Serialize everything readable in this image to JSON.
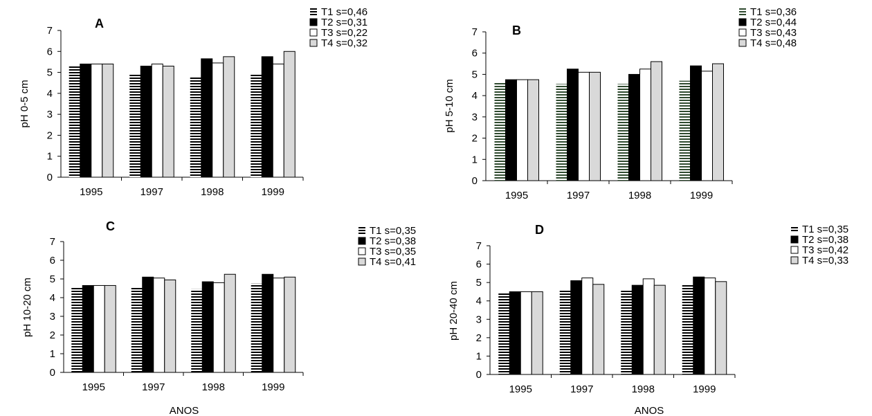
{
  "chart_data": [
    {
      "type": "bar",
      "panel_label": "A",
      "ylabel": "pH 0-5 cm",
      "xlabel": "",
      "categories": [
        "1995",
        "1997",
        "1998",
        "1999"
      ],
      "ylim": [
        0,
        7
      ],
      "yticks": [
        "0",
        "1",
        "2",
        "3",
        "4",
        "5",
        "6",
        "7"
      ],
      "series": [
        {
          "name": "T1 s=0,46",
          "values": [
            5.3,
            4.95,
            4.8,
            4.95
          ]
        },
        {
          "name": "T2 s=0,31",
          "values": [
            5.4,
            5.3,
            5.65,
            5.75
          ]
        },
        {
          "name": "T3 s=0,22",
          "values": [
            5.4,
            5.4,
            5.45,
            5.4
          ]
        },
        {
          "name": "T4 s=0,32",
          "values": [
            5.4,
            5.3,
            5.75,
            6.0
          ]
        }
      ]
    },
    {
      "type": "bar",
      "panel_label": "B",
      "ylabel": "pH 5-10 cm",
      "xlabel": "",
      "categories": [
        "1995",
        "1997",
        "1998",
        "1999"
      ],
      "ylim": [
        0,
        7
      ],
      "yticks": [
        "0",
        "1",
        "2",
        "3",
        "4",
        "5",
        "6",
        "7"
      ],
      "series": [
        {
          "name": "T1 s=0,36",
          "values": [
            4.65,
            4.55,
            4.55,
            4.7
          ]
        },
        {
          "name": "T2 s=0,44",
          "values": [
            4.75,
            5.25,
            5.0,
            5.4
          ]
        },
        {
          "name": "T3 s=0,43",
          "values": [
            4.75,
            5.1,
            5.25,
            5.15
          ]
        },
        {
          "name": "T4 s=0,48",
          "values": [
            4.75,
            5.1,
            5.6,
            5.5
          ]
        }
      ]
    },
    {
      "type": "bar",
      "panel_label": "C",
      "ylabel": "pH 10-20 cm",
      "xlabel": "ANOS",
      "categories": [
        "1995",
        "1997",
        "1998",
        "1999"
      ],
      "ylim": [
        0,
        7
      ],
      "yticks": [
        "0",
        "1",
        "2",
        "3",
        "4",
        "5",
        "6",
        "7"
      ],
      "series": [
        {
          "name": "T1 s=0,35",
          "values": [
            4.55,
            4.55,
            4.45,
            4.75
          ]
        },
        {
          "name": "T2 s=0,38",
          "values": [
            4.65,
            5.1,
            4.85,
            5.25
          ]
        },
        {
          "name": "T3 s=0,35",
          "values": [
            4.65,
            5.05,
            4.8,
            5.05
          ]
        },
        {
          "name": "T4 s=0,41",
          "values": [
            4.65,
            4.95,
            5.25,
            5.1
          ]
        }
      ]
    },
    {
      "type": "bar",
      "panel_label": "D",
      "ylabel": "pH 20-40 cm",
      "xlabel": "ANOS",
      "categories": [
        "1995",
        "1997",
        "1998",
        "1999"
      ],
      "ylim": [
        0,
        7
      ],
      "yticks": [
        "0",
        "1",
        "2",
        "3",
        "4",
        "5",
        "6",
        "7"
      ],
      "series": [
        {
          "name": "T1 s=0,35",
          "values": [
            4.45,
            4.6,
            4.55,
            4.9
          ]
        },
        {
          "name": "T2 s=0,38",
          "values": [
            4.5,
            5.1,
            4.85,
            5.3
          ]
        },
        {
          "name": "T3 s=0,42",
          "values": [
            4.5,
            5.25,
            5.2,
            5.25
          ]
        },
        {
          "name": "T4 s=0,33",
          "values": [
            4.5,
            4.9,
            4.85,
            5.05
          ]
        }
      ]
    }
  ],
  "series_styles": [
    {
      "pattern": "horizontal-stripes",
      "color": "#000000",
      "stripe_bg": "#ffffff"
    },
    {
      "pattern": "solid",
      "color": "#000000"
    },
    {
      "pattern": "solid",
      "color": "#ffffff"
    },
    {
      "pattern": "solid",
      "color": "#d9d9d9"
    }
  ],
  "panel_b_stripe_color": "#2f4a2f"
}
